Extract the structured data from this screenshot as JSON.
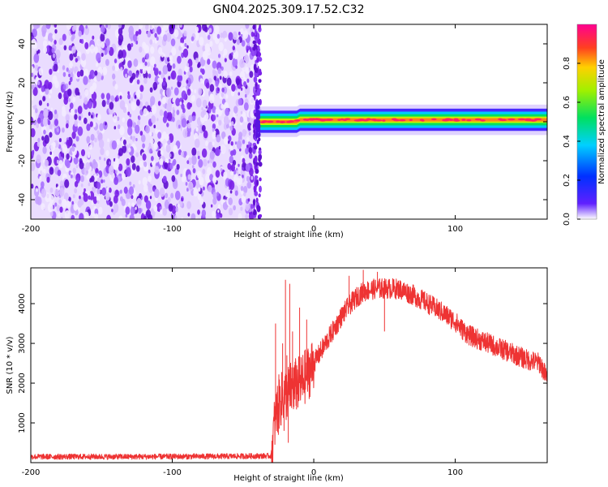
{
  "title": "GN04.2025.309.17.52.C32",
  "colors": {
    "snr_line": "#ee3333",
    "background_scatter": "#7a1fe8",
    "band_core": "#ff2060"
  },
  "chart_data": [
    {
      "name": "spectrogram",
      "type": "heatmap",
      "xlabel": "Height of straight line (km)",
      "ylabel": "Frequency (Hz)",
      "xlim": [
        -200,
        165
      ],
      "ylim": [
        -50,
        50
      ],
      "xticks": [
        -200,
        -100,
        0,
        100
      ],
      "yticks": [
        -40,
        -20,
        0,
        20,
        40
      ],
      "xtick_labels": [
        "-200",
        "-100",
        "0",
        "100"
      ],
      "ytick_labels": [
        "-40",
        "-20",
        "0",
        "20",
        "40"
      ],
      "noise_region_x": [
        -200,
        -40
      ],
      "signal_band": {
        "x_start": -40,
        "x_end": 165,
        "center_freq_hz": 1,
        "halfwidth_hz": 3,
        "step_at_x": -12,
        "center_before_step_hz": 0
      },
      "colorbar": {
        "label": "Normalized spectral amplitude",
        "range": [
          0,
          1
        ],
        "ticks": [
          0.0,
          0.2,
          0.4,
          0.6,
          0.8
        ],
        "tick_labels": [
          "0.0",
          "0.2",
          "0.4",
          "0.6",
          "0.8"
        ]
      }
    },
    {
      "name": "snr",
      "type": "line",
      "xlabel": "Height of straight line (km)",
      "ylabel": "SNR (10 * v/v)",
      "xlim": [
        -200,
        165
      ],
      "ylim": [
        0,
        4900
      ],
      "xticks": [
        -200,
        -100,
        0,
        100
      ],
      "yticks": [
        1000,
        2000,
        3000,
        4000
      ],
      "xtick_labels": [
        "-200",
        "-100",
        "0",
        "100"
      ],
      "ytick_labels": [
        "1000",
        "2000",
        "3000",
        "4000"
      ],
      "x": [
        -200,
        -120,
        -60,
        -30,
        -28,
        -25,
        -20,
        -15,
        -10,
        -5,
        0,
        5,
        10,
        15,
        20,
        25,
        30,
        35,
        40,
        45,
        50,
        55,
        60,
        65,
        70,
        80,
        90,
        100,
        105,
        110,
        120,
        130,
        140,
        150,
        160,
        165
      ],
      "y": [
        150,
        150,
        160,
        170,
        900,
        1500,
        1700,
        1900,
        2000,
        2200,
        2500,
        2800,
        3100,
        3400,
        3700,
        3950,
        4150,
        4300,
        4350,
        4380,
        4380,
        4380,
        4370,
        4300,
        4220,
        4020,
        3800,
        3550,
        3350,
        3200,
        3050,
        2900,
        2750,
        2600,
        2500,
        2100
      ],
      "spikes": [
        {
          "x": -27,
          "y": 3500
        },
        {
          "x": -22,
          "y": 3000
        },
        {
          "x": -20,
          "y": 4600
        },
        {
          "x": -19,
          "y": 2700
        },
        {
          "x": -17,
          "y": 4500
        },
        {
          "x": -15,
          "y": 3300
        },
        {
          "x": -10,
          "y": 3900
        },
        {
          "x": -5,
          "y": 3600
        },
        {
          "x": 25,
          "y": 4700
        },
        {
          "x": 35,
          "y": 4850
        },
        {
          "x": 45,
          "y": 4800
        }
      ],
      "dips": [
        {
          "x": -25,
          "y": 700
        },
        {
          "x": -21,
          "y": 800
        },
        {
          "x": -18,
          "y": 500
        },
        {
          "x": -14,
          "y": 1400
        },
        {
          "x": -8,
          "y": 1700
        },
        {
          "x": 50,
          "y": 3300
        }
      ]
    }
  ]
}
